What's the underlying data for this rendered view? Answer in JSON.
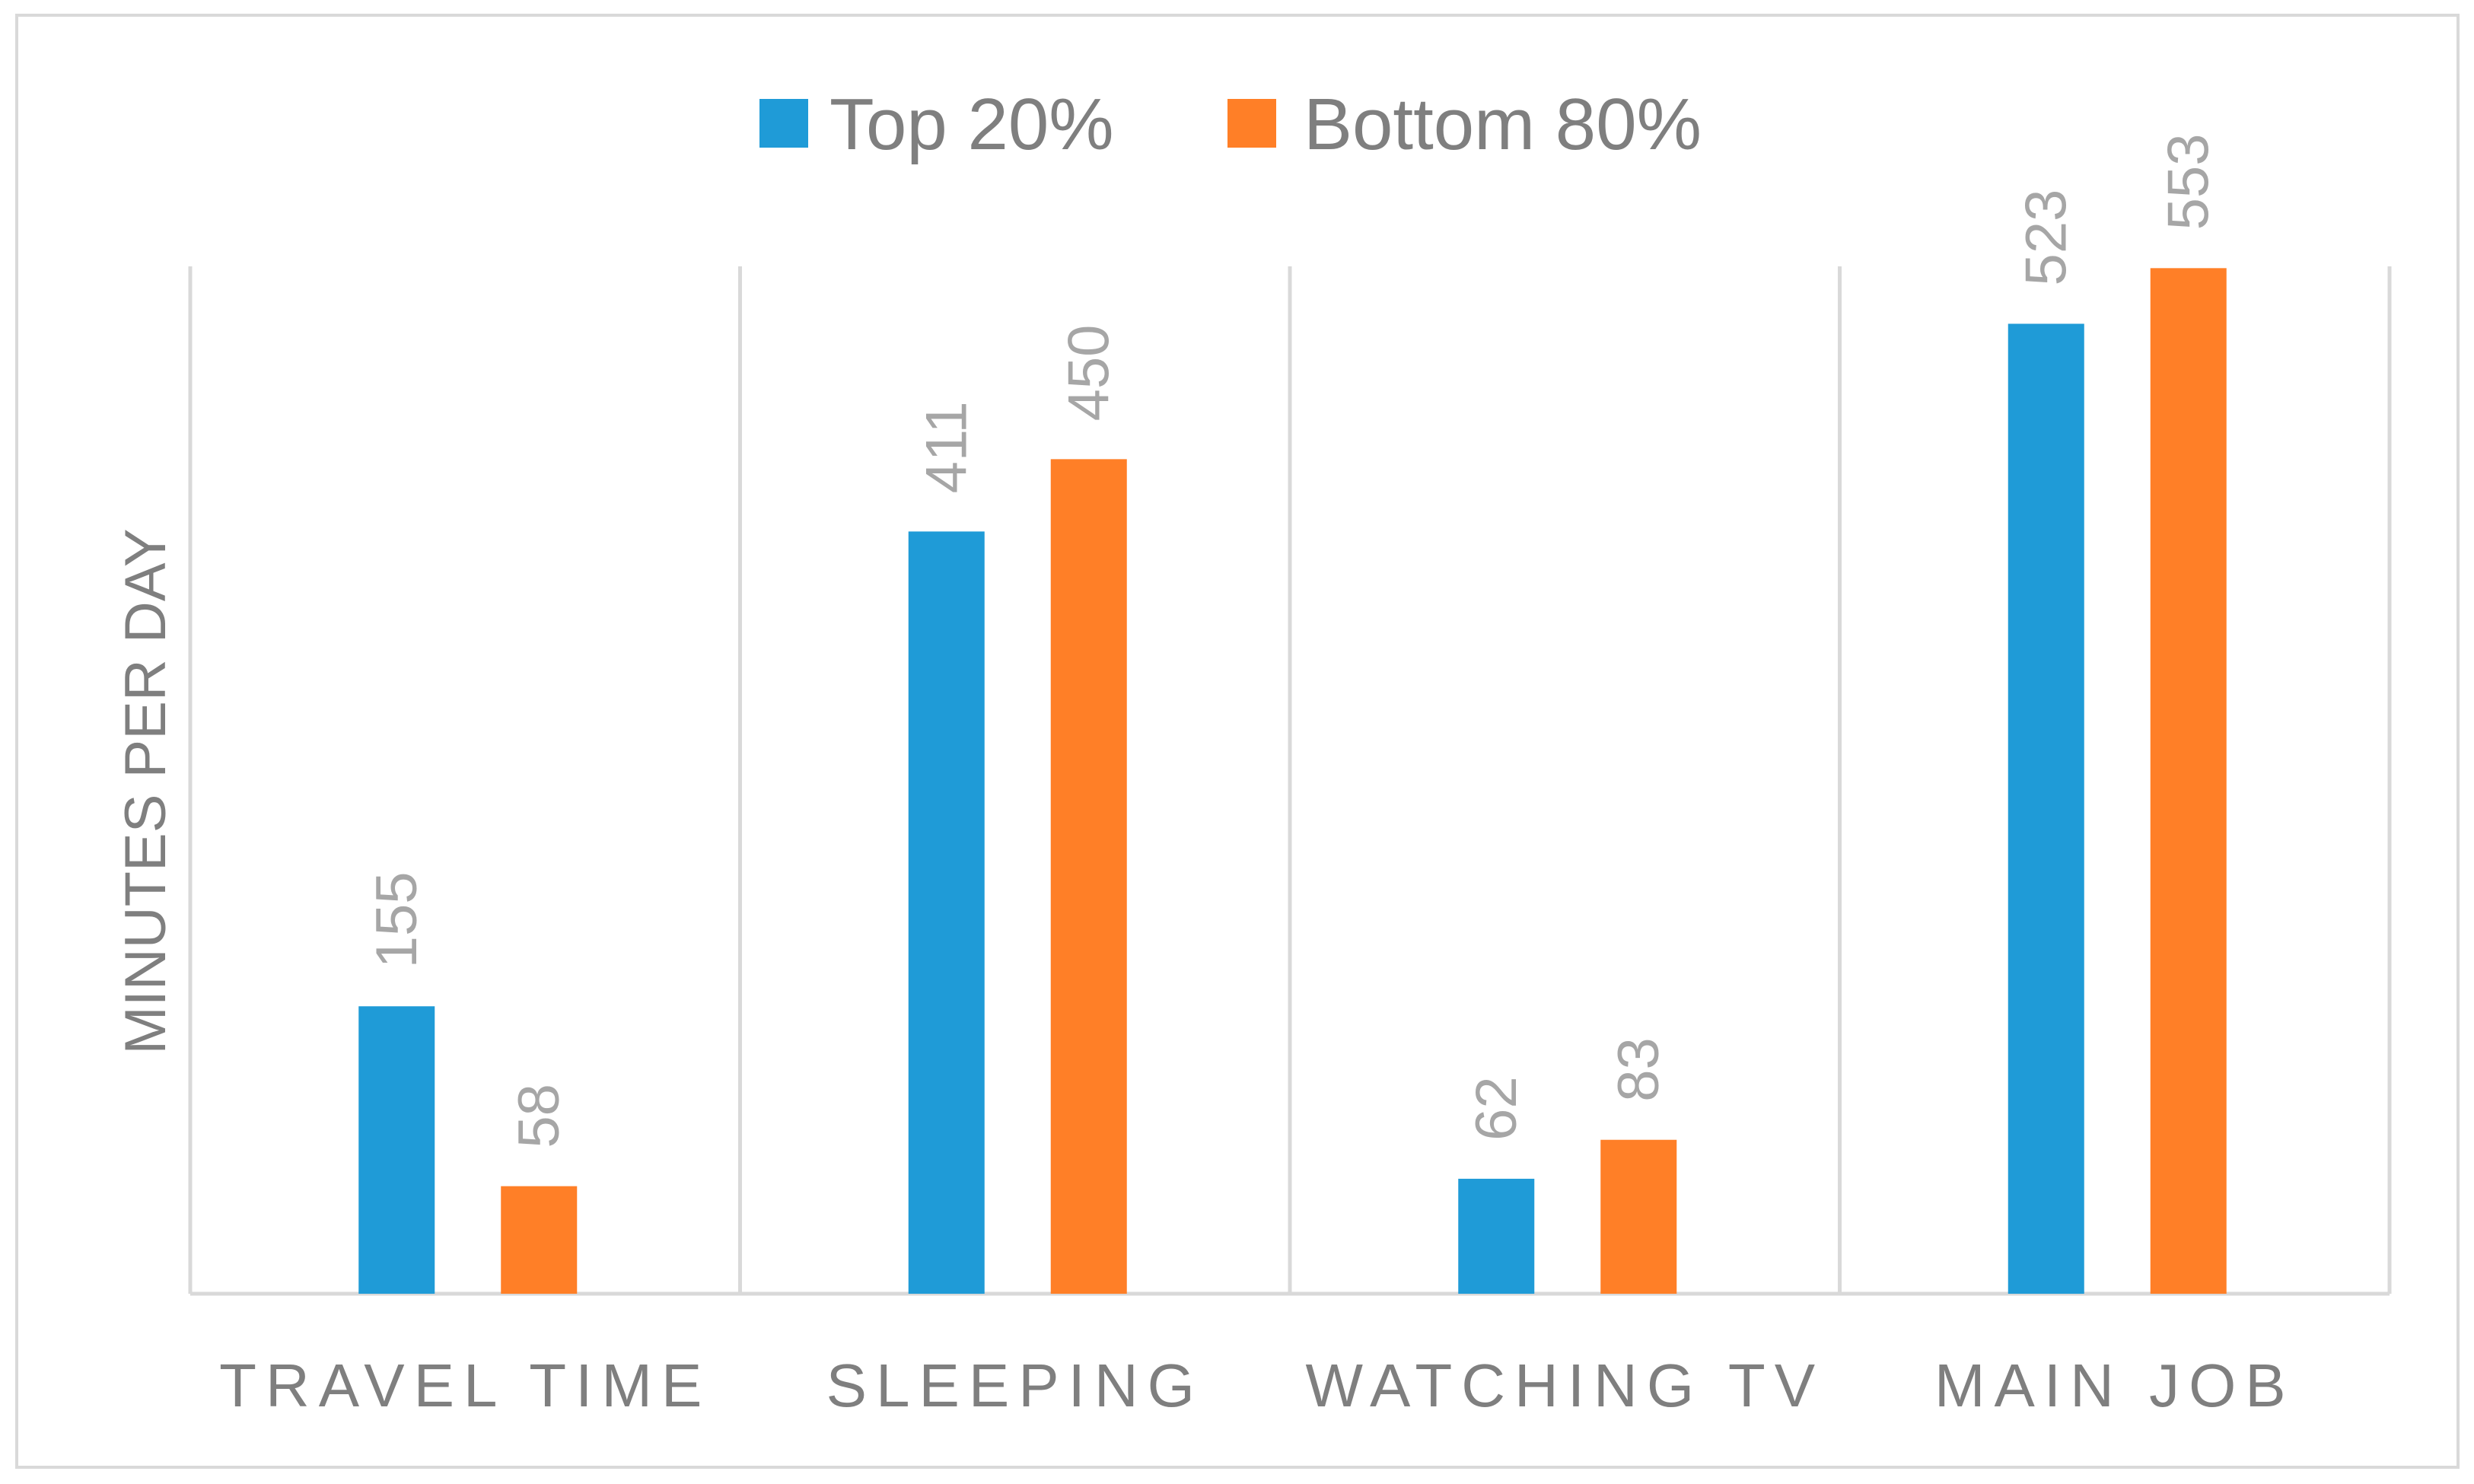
{
  "chart_data": {
    "type": "bar",
    "title": "",
    "xlabel": "",
    "ylabel": "MINUTES PER DAY",
    "categories": [
      "TRAVEL TIME",
      "SLEEPING",
      "WATCHING TV",
      "MAIN JOB"
    ],
    "series": [
      {
        "name": "Top 20%",
        "values": [
          155,
          411,
          62,
          523
        ],
        "color": "#1f9bd7"
      },
      {
        "name": "Bottom 80%",
        "values": [
          58,
          450,
          83,
          553
        ],
        "color": "#ff7f27"
      }
    ],
    "ylim": [
      0,
      600
    ],
    "grid": "vertical category separators",
    "legend": "top-center",
    "data_labels": "rotated, above bars"
  }
}
